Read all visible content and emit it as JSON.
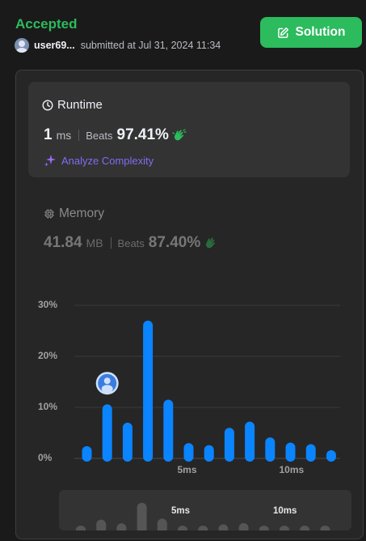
{
  "header": {
    "status": "Accepted",
    "username": "user69...",
    "submitted_text": "submitted at Jul 31, 2024 11:34",
    "solution_label": "Solution",
    "accent_color": "#2cbb5d"
  },
  "runtime": {
    "title": "Runtime",
    "value": "1",
    "unit": "ms",
    "beats_label": "Beats",
    "beats_value": "97.41%",
    "analyze_label": "Analyze Complexity"
  },
  "memory": {
    "title": "Memory",
    "value": "41.84",
    "unit": "MB",
    "beats_label": "Beats",
    "beats_value": "87.40%"
  },
  "chart_data": {
    "type": "bar",
    "ylabel_ticks": [
      "30%",
      "20%",
      "10%",
      "0%"
    ],
    "yticks": [
      30,
      20,
      10,
      0
    ],
    "ylim": [
      0,
      30
    ],
    "x_tick_labels": [
      "5ms",
      "10ms"
    ],
    "x_tick_positions": [
      5,
      10
    ],
    "x": [
      0,
      1,
      2,
      3,
      4,
      5,
      6,
      7,
      8,
      9,
      10,
      11,
      12
    ],
    "values": [
      2.4,
      10.6,
      7.0,
      27.0,
      11.5,
      3.0,
      2.6,
      6.0,
      7.2,
      4.1,
      3.1,
      2.8,
      1.6
    ],
    "user_bar_index": 1,
    "grid": true,
    "bar_color": "#0a84ff"
  }
}
